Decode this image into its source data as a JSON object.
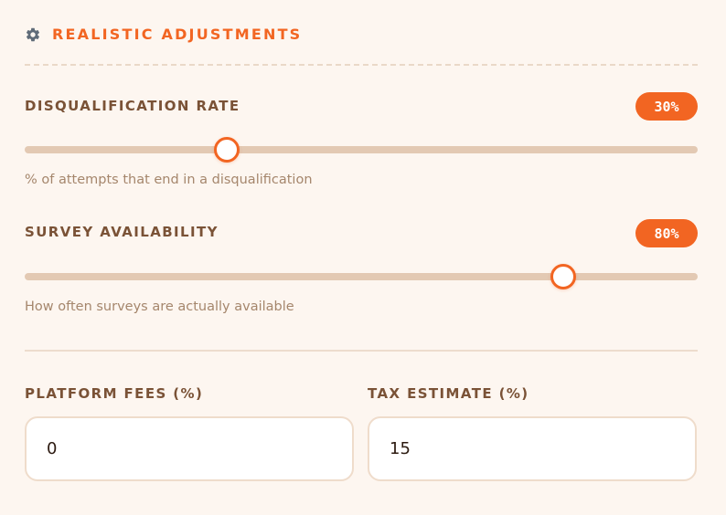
{
  "section": {
    "title": "REALISTIC ADJUSTMENTS",
    "icon": "gear-icon",
    "accent_color": "#f26522"
  },
  "disqualification": {
    "label": "DISQUALIFICATION RATE",
    "value_text": "30%",
    "value": 30,
    "min": 0,
    "max": 100,
    "help": "% of attempts that end in a disqualification"
  },
  "availability": {
    "label": "SURVEY AVAILABILITY",
    "value_text": "80%",
    "value": 80,
    "min": 0,
    "max": 100,
    "help": "How often surveys are actually available"
  },
  "platform_fees": {
    "label": "PLATFORM FEES (%)",
    "value": "0"
  },
  "tax_estimate": {
    "label": "TAX ESTIMATE (%)",
    "value": "15"
  }
}
